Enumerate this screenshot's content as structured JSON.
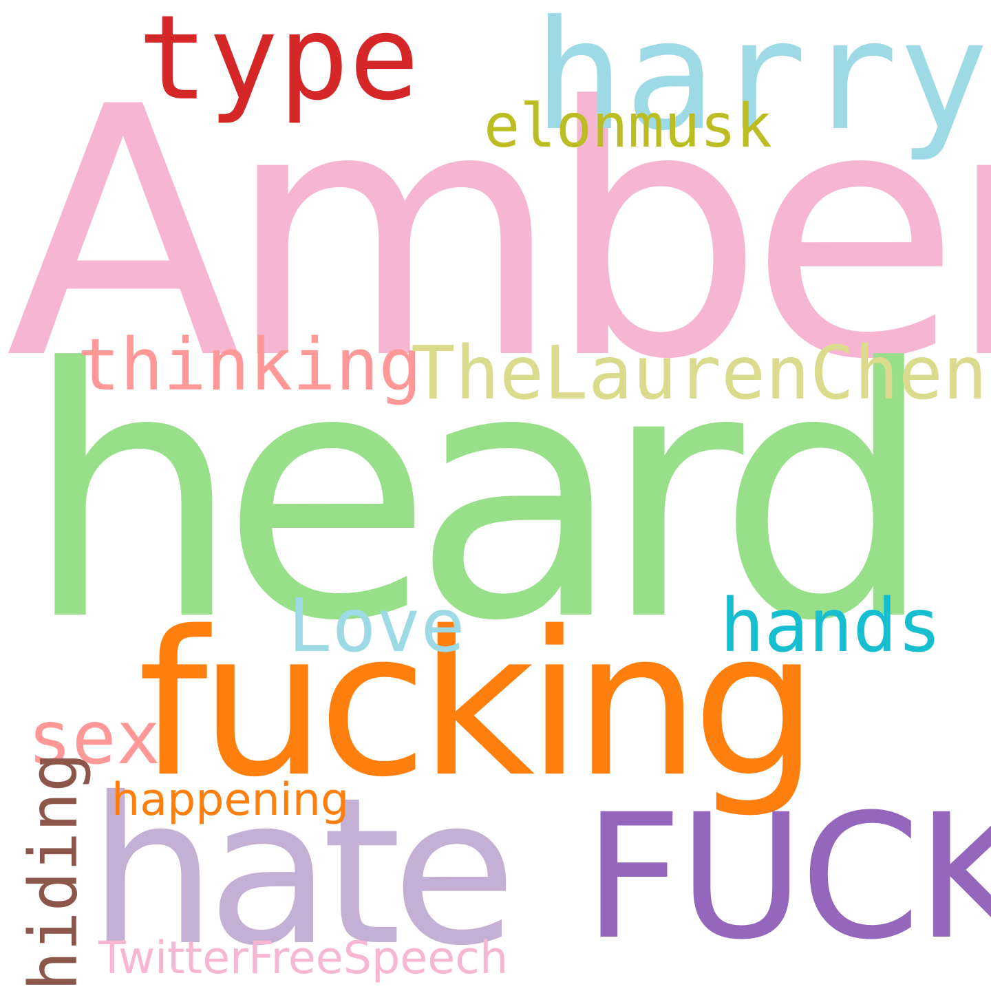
{
  "words": [
    {
      "text": "Amber",
      "color": "#f6b6d2"
    },
    {
      "text": "heard",
      "color": "#98df8a"
    },
    {
      "text": "fucking",
      "color": "#ff7f0e"
    },
    {
      "text": "hate",
      "color": "#c5b0d5"
    },
    {
      "text": "FUCK",
      "color": "#9467bd"
    },
    {
      "text": "harry",
      "color": "#9edae5"
    },
    {
      "text": "type",
      "color": "#d62728"
    },
    {
      "text": "elonmusk",
      "color": "#bcbd22"
    },
    {
      "text": "thinking",
      "color": "#ff9896"
    },
    {
      "text": "TheLaurenChen",
      "color": "#dbdb8d"
    },
    {
      "text": "Love",
      "color": "#9edae5"
    },
    {
      "text": "hands",
      "color": "#17becf"
    },
    {
      "text": "sex",
      "color": "#ff9896"
    },
    {
      "text": "happening",
      "color": "#ff7f0e"
    },
    {
      "text": "TwitterFreeSpeech",
      "color": "#f7b6d2"
    },
    {
      "text": "hiding",
      "color": "#8c564b"
    }
  ]
}
